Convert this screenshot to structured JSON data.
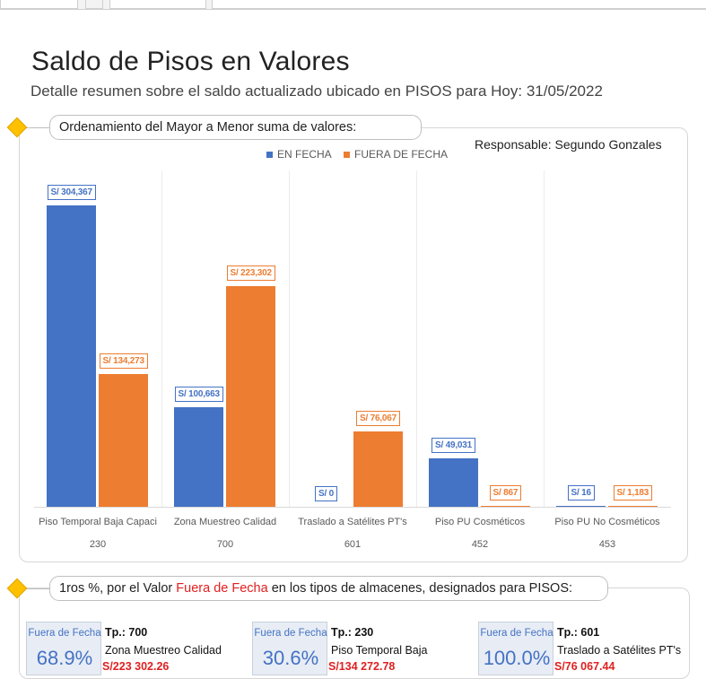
{
  "header": {
    "title": "Saldo de Pisos en Valores",
    "subtitle": "Detalle resumen sobre el saldo actualizado ubicado en PISOS para Hoy: 31/05/2022"
  },
  "section1": {
    "heading": "Ordenamiento del Mayor a Menor suma de valores:",
    "responsable": "Responsable: Segundo Gonzales"
  },
  "chart_data": {
    "type": "bar",
    "categories": [
      "Piso Temporal Baja Capaci",
      "Zona Muestreo Calidad",
      "Traslado a Satélites PT's",
      "Piso PU Cosméticos",
      "Piso PU No Cosméticos"
    ],
    "category_codes": [
      "230",
      "700",
      "601",
      "452",
      "453"
    ],
    "series": [
      {
        "name": "EN FECHA",
        "color": "#4472c4",
        "values": [
          304367,
          100663,
          0,
          49031,
          16
        ],
        "labels": [
          "S/ 304,367",
          "S/ 100,663",
          "S/ 0",
          "S/ 49,031",
          "S/ 16"
        ]
      },
      {
        "name": "FUERA DE FECHA",
        "color": "#ed7d31",
        "values": [
          134273,
          223302,
          76067,
          867,
          1183
        ],
        "labels": [
          "S/ 134,273",
          "S/ 223,302",
          "S/ 76,067",
          "S/ 867",
          "S/ 1,183"
        ]
      }
    ],
    "ylim": [
      0,
      340000
    ],
    "legend_position": "top-center",
    "grid": false
  },
  "section2": {
    "heading_pre": "1ros %, por el Valor ",
    "heading_highlight": "Fuera de Fecha",
    "heading_post": " en los tipos de almacenes, designados para PISOS:",
    "cards": [
      {
        "kpi_label": "Fuera de Fecha",
        "kpi_value": "68.9%",
        "tp": "Tp.: 700",
        "name": "Zona Muestreo Calidad",
        "value": "S/223 302.26"
      },
      {
        "kpi_label": "Fuera de Fecha",
        "kpi_value": "30.6%",
        "tp": "Tp.: 230",
        "name": "Piso Temporal Baja",
        "value": "S/134 272.78"
      },
      {
        "kpi_label": "Fuera de Fecha",
        "kpi_value": "100.0%",
        "tp": "Tp.: 601",
        "name": "Traslado a Satélites PT's",
        "value": "S/76 067.44"
      }
    ]
  },
  "colors": {
    "accent_blue": "#4472c4",
    "accent_orange": "#ed7d31",
    "highlight_red": "#e02020",
    "diamond": "#ffc000"
  }
}
